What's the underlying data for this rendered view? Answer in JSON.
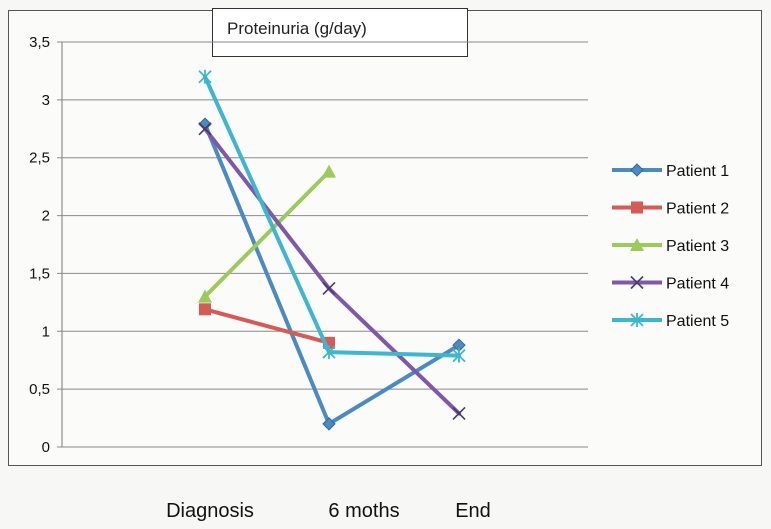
{
  "chart_data": {
    "type": "line",
    "title": "Proteinuria (g/day)",
    "categories": [
      "Diagnosis",
      "6 moths",
      "End"
    ],
    "ylim": [
      0,
      3.5
    ],
    "yticks": [
      "0",
      "0,5",
      "1",
      "1,5",
      "2",
      "2,5",
      "3",
      "3,5"
    ],
    "grid": true,
    "legend_position": "right",
    "series": [
      {
        "name": "Patient 1",
        "values": [
          2.79,
          0.2,
          0.88
        ],
        "color": "#4a8bc2",
        "marker": "diamond"
      },
      {
        "name": "Patient 2",
        "values": [
          1.19,
          0.9,
          null
        ],
        "color": "#d65a55",
        "marker": "square"
      },
      {
        "name": "Patient 3",
        "values": [
          1.3,
          2.38,
          null
        ],
        "color": "#9ccb5c",
        "marker": "triangle"
      },
      {
        "name": "Patient 4",
        "values": [
          2.75,
          1.37,
          0.29
        ],
        "color": "#7f58a8",
        "marker": "x"
      },
      {
        "name": "Patient 5",
        "values": [
          3.2,
          0.82,
          0.79
        ],
        "color": "#3cb7cf",
        "marker": "star"
      }
    ]
  }
}
